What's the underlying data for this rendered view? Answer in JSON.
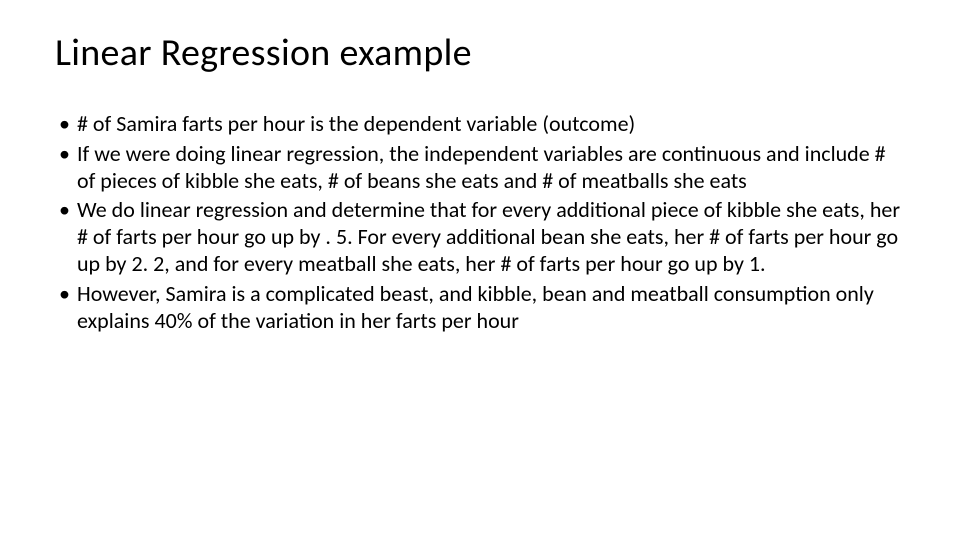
{
  "slide": {
    "title": "Linear Regression example",
    "bullets": [
      "# of Samira farts per hour is the dependent variable (outcome)",
      "If we were doing linear regression, the independent variables are continuous and include # of pieces of kibble she eats, # of beans she eats and # of meatballs she eats",
      "We do linear regression and determine that for every additional piece of kibble she eats, her # of farts per hour go up by . 5.  For every additional bean she eats, her # of farts per hour go up by 2. 2, and for every meatball she eats, her # of farts per hour go up by 1.",
      "However, Samira is a complicated beast, and kibble, bean and meatball consumption only explains 40% of the variation in her farts per hour"
    ],
    "background_color": "#ffffff",
    "text_color": "#000000",
    "title_fontsize": 38,
    "body_fontsize": 22,
    "font_family": "Calibri"
  }
}
